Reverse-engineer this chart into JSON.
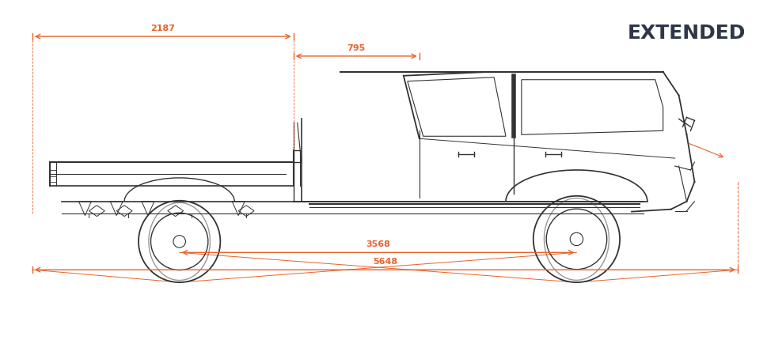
{
  "title": "EXTENDED",
  "title_color": "#2d3748",
  "orange": "#E8622A",
  "dark": "#333333",
  "bg_color": "#ffffff",
  "dim_2187": "2187",
  "dim_795": "795",
  "dim_3568": "3568",
  "dim_5648": "5648",
  "figsize": [
    9.7,
    4.31
  ],
  "dpi": 100
}
